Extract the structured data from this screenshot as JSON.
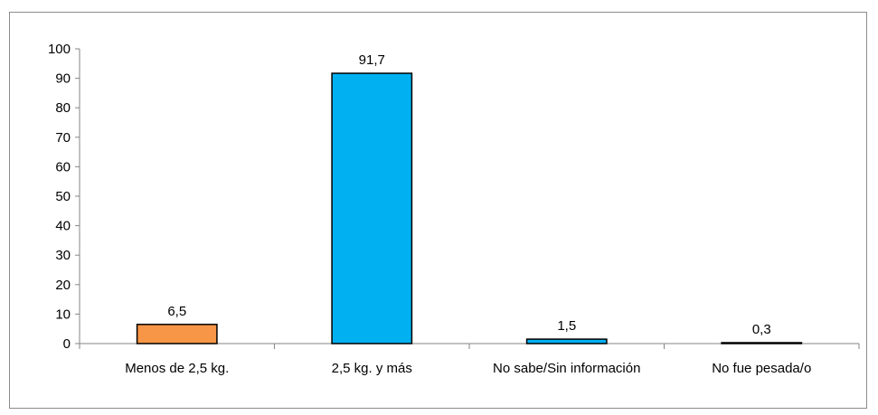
{
  "chart_data": {
    "type": "bar",
    "categories": [
      "Menos de 2,5 kg.",
      "2,5 kg. y más",
      "No sabe/Sin información",
      "No fue pesada/o"
    ],
    "values": [
      6.5,
      91.7,
      1.5,
      0.3
    ],
    "data_labels": [
      "6,5",
      "91,7",
      "1,5",
      "0,3"
    ],
    "bar_colors": [
      "#F79646",
      "#00B0F0",
      "#00B0F0",
      "#00B0F0"
    ],
    "bar_stroke": "#000000",
    "title": "",
    "xlabel": "",
    "ylabel": "",
    "ylim": [
      0,
      100
    ],
    "yticks": [
      0,
      10,
      20,
      30,
      40,
      50,
      60,
      70,
      80,
      90,
      100
    ],
    "grid": false,
    "legend": "none"
  }
}
